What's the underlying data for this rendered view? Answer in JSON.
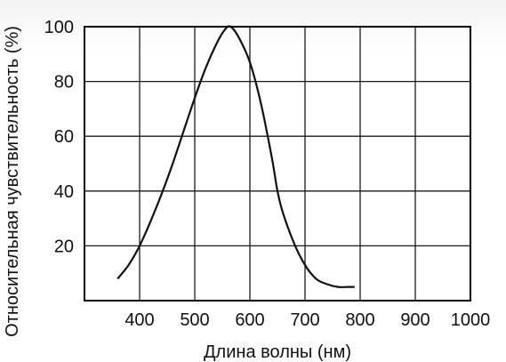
{
  "chart_data": {
    "type": "line",
    "title": "",
    "xlabel": "Длина волны (нм)",
    "ylabel": "Относительная чувствительность (%)",
    "xlim": [
      300,
      1000
    ],
    "ylim": [
      0,
      100
    ],
    "x_ticks": [
      400,
      500,
      600,
      700,
      800,
      900,
      1000
    ],
    "y_ticks": [
      20,
      40,
      60,
      80,
      100
    ],
    "grid": true,
    "legend": "none",
    "series": [
      {
        "x": [
          360,
          380,
          400,
          420,
          440,
          460,
          480,
          500,
          520,
          540,
          555,
          565,
          580,
          600,
          620,
          640,
          650,
          660,
          680,
          700,
          720,
          740,
          760,
          780,
          790
        ],
        "y": [
          8,
          13,
          20,
          29,
          39,
          50,
          62,
          74,
          85,
          94,
          99,
          100,
          96,
          87,
          72,
          52,
          40,
          32,
          21,
          13,
          8,
          6,
          5,
          5,
          5
        ]
      }
    ],
    "colors": {
      "line": "#111111",
      "grid": "#1a1a1a",
      "frame": "#000000"
    }
  }
}
